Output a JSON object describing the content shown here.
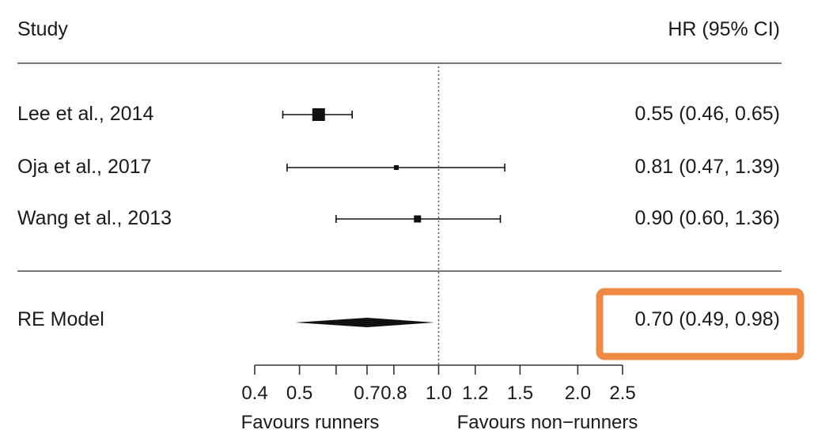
{
  "headers": {
    "study": "Study",
    "estimate": "HR (95% CI)"
  },
  "chart_data": {
    "type": "forest",
    "scale": "log",
    "xlim": [
      0.4,
      2.5
    ],
    "reference_line": 1.0,
    "studies": [
      {
        "label": "Lee et al., 2014",
        "hr": 0.55,
        "lo": 0.46,
        "hi": 0.65,
        "ci_text": "0.55 (0.46, 0.65)",
        "weight": "large"
      },
      {
        "label": "Oja et al., 2017",
        "hr": 0.81,
        "lo": 0.47,
        "hi": 1.39,
        "ci_text": "0.81 (0.47, 1.39)",
        "weight": "small"
      },
      {
        "label": "Wang et al., 2013",
        "hr": 0.9,
        "lo": 0.6,
        "hi": 1.36,
        "ci_text": "0.90 (0.60, 1.36)",
        "weight": "medium"
      }
    ],
    "summary": {
      "label": "RE Model",
      "hr": 0.7,
      "lo": 0.49,
      "hi": 0.98,
      "ci_text": "0.70 (0.49, 0.98)",
      "highlighted": true
    },
    "ticks": [
      {
        "value": 0.4,
        "label": "0.4"
      },
      {
        "value": 0.5,
        "label": "0.5"
      },
      {
        "value": 0.7,
        "label": "0.7"
      },
      {
        "value": 0.8,
        "label": "0.8"
      },
      {
        "value": 1.0,
        "label": "1.0"
      },
      {
        "value": 1.2,
        "label": "1.2"
      },
      {
        "value": 1.5,
        "label": "1.5"
      },
      {
        "value": 2.0,
        "label": "2.0"
      },
      {
        "value": 2.5,
        "label": "2.5"
      }
    ],
    "minor_ticks": [
      0.6
    ],
    "axis_captions": {
      "left": "Favours runners",
      "right": "Favours non−runners"
    },
    "colors": {
      "marks": "#111111",
      "reference_line": "#555555",
      "rules": "#777777",
      "highlight": "#ef8a45"
    }
  }
}
